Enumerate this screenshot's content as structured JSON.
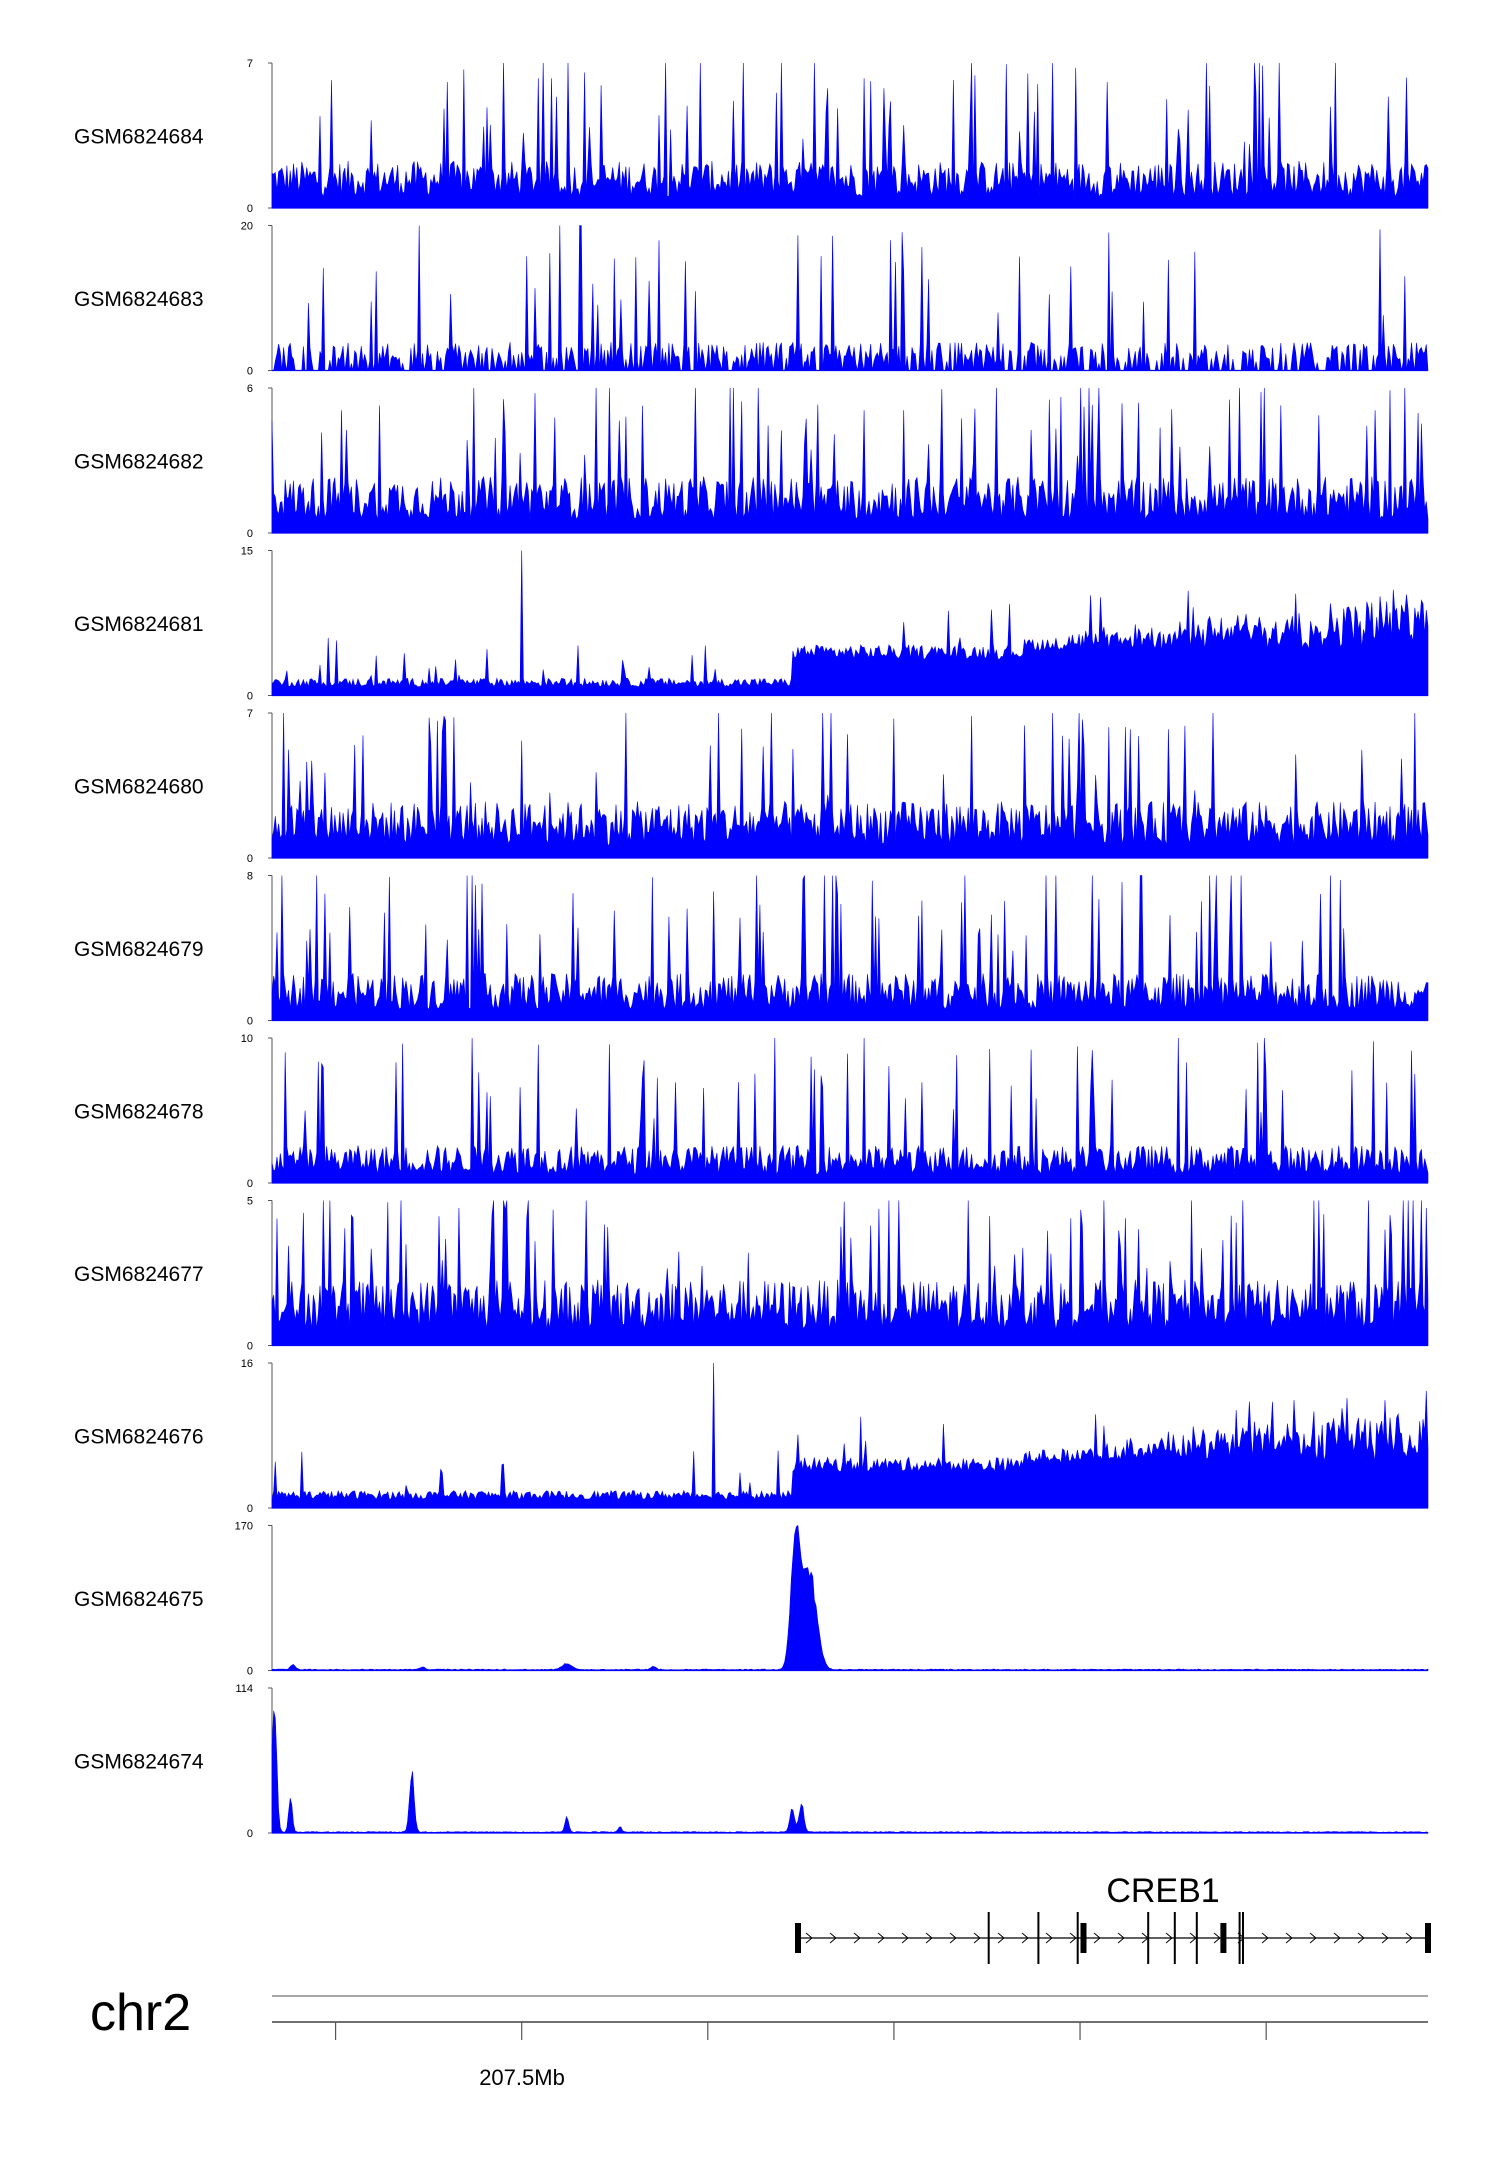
{
  "chart_data": {
    "type": "genome-browser-tracks",
    "chromosome": "chr2",
    "axis": {
      "tick_label": "207.5Mb"
    },
    "fill_color": "#0000ff",
    "tracks": [
      {
        "name": "GSM6824684",
        "ymax": "7",
        "ymin": "0",
        "max": 7,
        "pattern": "uniform",
        "base": 0.25,
        "spike": 1.0
      },
      {
        "name": "GSM6824683",
        "ymax": "20",
        "ymin": "0",
        "max": 20,
        "pattern": "sparse",
        "base": 0.15,
        "spike": 1.0
      },
      {
        "name": "GSM6824682",
        "ymax": "6",
        "ymin": "0",
        "max": 6,
        "pattern": "uniform",
        "base": 0.3,
        "spike": 1.0
      },
      {
        "name": "GSM6824681",
        "ymax": "15",
        "ymin": "0",
        "max": 15,
        "pattern": "ramp",
        "base": 0.05,
        "spike": 1.0
      },
      {
        "name": "GSM6824680",
        "ymax": "7",
        "ymin": "0",
        "max": 7,
        "pattern": "uniform",
        "base": 0.3,
        "spike": 1.0
      },
      {
        "name": "GSM6824679",
        "ymax": "8",
        "ymin": "0",
        "max": 8,
        "pattern": "uniform",
        "base": 0.25,
        "spike": 1.0
      },
      {
        "name": "GSM6824678",
        "ymax": "10",
        "ymin": "0",
        "max": 10,
        "pattern": "uniform",
        "base": 0.2,
        "spike": 1.0
      },
      {
        "name": "GSM6824677",
        "ymax": "5",
        "ymin": "0",
        "max": 5,
        "pattern": "uniform",
        "base": 0.35,
        "spike": 1.0
      },
      {
        "name": "GSM6824676",
        "ymax": "16",
        "ymin": "0",
        "max": 16,
        "pattern": "ramp",
        "base": 0.05,
        "spike": 1.0
      },
      {
        "name": "GSM6824675",
        "ymax": "170",
        "ymin": "0",
        "max": 170,
        "pattern": "peak",
        "peaks": [
          {
            "pos": 0.453,
            "h": 1.0,
            "w": 0.004
          },
          {
            "pos": 0.465,
            "h": 0.72,
            "w": 0.006
          },
          {
            "pos": 0.018,
            "h": 0.04,
            "w": 0.002
          },
          {
            "pos": 0.13,
            "h": 0.02,
            "w": 0.002
          },
          {
            "pos": 0.255,
            "h": 0.045,
            "w": 0.004
          },
          {
            "pos": 0.33,
            "h": 0.025,
            "w": 0.002
          }
        ]
      },
      {
        "name": "GSM6824674",
        "ymax": "114",
        "ymin": "0",
        "max": 114,
        "pattern": "peak",
        "peaks": [
          {
            "pos": 0.002,
            "h": 0.98,
            "w": 0.002
          },
          {
            "pos": 0.016,
            "h": 0.28,
            "w": 0.0015
          },
          {
            "pos": 0.121,
            "h": 0.44,
            "w": 0.002
          },
          {
            "pos": 0.255,
            "h": 0.12,
            "w": 0.0015
          },
          {
            "pos": 0.45,
            "h": 0.18,
            "w": 0.002
          },
          {
            "pos": 0.458,
            "h": 0.22,
            "w": 0.002
          },
          {
            "pos": 0.301,
            "h": 0.04,
            "w": 0.0015
          }
        ]
      }
    ],
    "gene": {
      "name": "CREB1",
      "start": 0.455,
      "end": 1.0,
      "exons": [
        0.455,
        0.62,
        0.663,
        0.697,
        0.702,
        0.758,
        0.781,
        0.8,
        0.823,
        0.837,
        0.84,
        1.0
      ]
    }
  }
}
